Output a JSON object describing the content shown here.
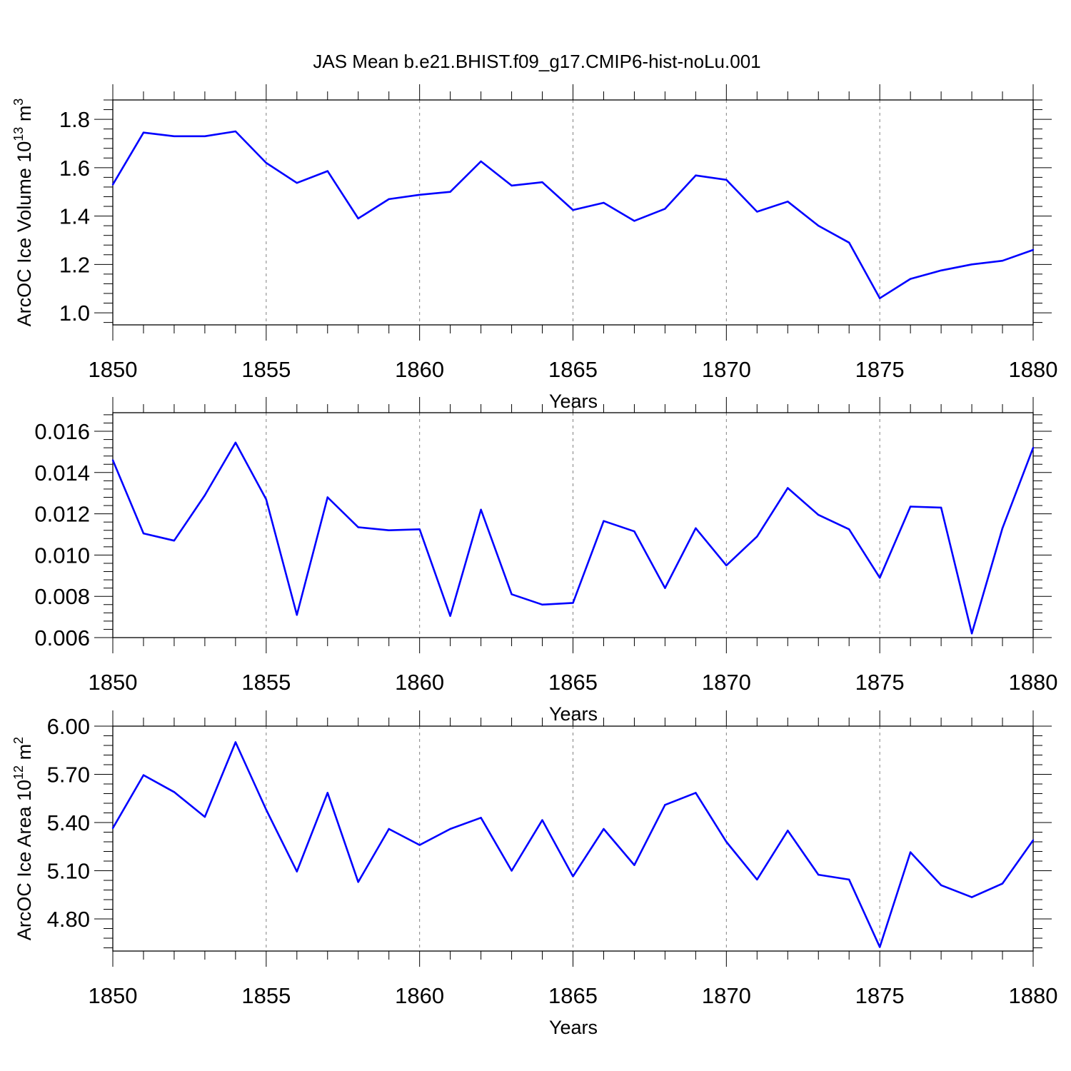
{
  "title": "JAS Mean b.e21.BHIST.f09_g17.CMIP6-hist-noLu.001",
  "colors": {
    "line": "#0000ff",
    "axis": "#000000",
    "grid": "#808080"
  },
  "chart_data": [
    {
      "type": "line",
      "ylabel": "ArcOC Ice Volume 10",
      "ylabel_exp": "13",
      "ylabel_unit": " m",
      "ylabel_unit_exp": "3",
      "xlabel": "Years",
      "xlim": [
        1850,
        1880
      ],
      "ylim": [
        0.95,
        1.88
      ],
      "yticks": [
        1.0,
        1.2,
        1.4,
        1.6,
        1.8
      ],
      "ytick_labels": [
        "1.0",
        "1.2",
        "1.4",
        "1.6",
        "1.8"
      ],
      "xticks": [
        1850,
        1855,
        1860,
        1865,
        1870,
        1875,
        1880
      ],
      "xtick_labels": [
        "1850",
        "1855",
        "1860",
        "1865",
        "1870",
        "1875",
        "1880"
      ],
      "x": [
        1850,
        1851,
        1852,
        1853,
        1854,
        1855,
        1856,
        1857,
        1858,
        1859,
        1860,
        1861,
        1862,
        1863,
        1864,
        1865,
        1866,
        1867,
        1868,
        1869,
        1870,
        1871,
        1872,
        1873,
        1874,
        1875,
        1876,
        1877,
        1878,
        1879,
        1880
      ],
      "values": [
        1.53,
        1.745,
        1.73,
        1.73,
        1.75,
        1.62,
        1.537,
        1.586,
        1.39,
        1.47,
        1.488,
        1.5,
        1.626,
        1.526,
        1.54,
        1.425,
        1.455,
        1.38,
        1.43,
        1.568,
        1.55,
        1.418,
        1.46,
        1.36,
        1.29,
        1.06,
        1.14,
        1.175,
        1.2,
        1.215,
        1.26
      ]
    },
    {
      "type": "line",
      "ylabel": "",
      "xlabel": "Years",
      "xlim": [
        1850,
        1880
      ],
      "ylim": [
        0.006,
        0.0169
      ],
      "yticks": [
        0.006,
        0.008,
        0.01,
        0.012,
        0.014,
        0.016
      ],
      "ytick_labels": [
        "0.006",
        "0.008",
        "0.010",
        "0.012",
        "0.014",
        "0.016"
      ],
      "xticks": [
        1850,
        1855,
        1860,
        1865,
        1870,
        1875,
        1880
      ],
      "xtick_labels": [
        "1850",
        "1855",
        "1860",
        "1865",
        "1870",
        "1875",
        "1880"
      ],
      "x": [
        1850,
        1851,
        1852,
        1853,
        1854,
        1855,
        1856,
        1857,
        1858,
        1859,
        1860,
        1861,
        1862,
        1863,
        1864,
        1865,
        1866,
        1867,
        1868,
        1869,
        1870,
        1871,
        1872,
        1873,
        1874,
        1875,
        1876,
        1877,
        1878,
        1879,
        1880
      ],
      "values": [
        0.0146,
        0.01105,
        0.0107,
        0.0129,
        0.01545,
        0.0127,
        0.0071,
        0.0128,
        0.01135,
        0.0112,
        0.01125,
        0.00705,
        0.0122,
        0.0081,
        0.0076,
        0.00768,
        0.01165,
        0.01115,
        0.0084,
        0.0113,
        0.0095,
        0.0109,
        0.01325,
        0.01195,
        0.01125,
        0.0089,
        0.01235,
        0.0123,
        0.0062,
        0.0113,
        0.0152
      ]
    },
    {
      "type": "line",
      "ylabel": "ArcOC Ice Area 10",
      "ylabel_exp": "12",
      "ylabel_unit": " m",
      "ylabel_unit_exp": "2",
      "xlabel": "Years",
      "xlim": [
        1850,
        1880
      ],
      "ylim": [
        4.6,
        6.0
      ],
      "yticks": [
        4.8,
        5.1,
        5.4,
        5.7,
        6.0
      ],
      "ytick_labels": [
        "4.80",
        "5.10",
        "5.40",
        "5.70",
        "6.00"
      ],
      "xticks": [
        1850,
        1855,
        1860,
        1865,
        1870,
        1875,
        1880
      ],
      "xtick_labels": [
        "1850",
        "1855",
        "1860",
        "1865",
        "1870",
        "1875",
        "1880"
      ],
      "x": [
        1850,
        1851,
        1852,
        1853,
        1854,
        1855,
        1856,
        1857,
        1858,
        1859,
        1860,
        1861,
        1862,
        1863,
        1864,
        1865,
        1866,
        1867,
        1868,
        1869,
        1870,
        1871,
        1872,
        1873,
        1874,
        1875,
        1876,
        1877,
        1878,
        1879,
        1880
      ],
      "values": [
        5.365,
        5.695,
        5.59,
        5.435,
        5.9,
        5.48,
        5.095,
        5.585,
        5.03,
        5.36,
        5.26,
        5.36,
        5.43,
        5.1,
        5.415,
        5.065,
        5.36,
        5.135,
        5.51,
        5.585,
        5.28,
        5.045,
        5.35,
        5.075,
        5.045,
        4.625,
        5.215,
        5.01,
        4.935,
        5.02,
        5.29
      ]
    }
  ]
}
